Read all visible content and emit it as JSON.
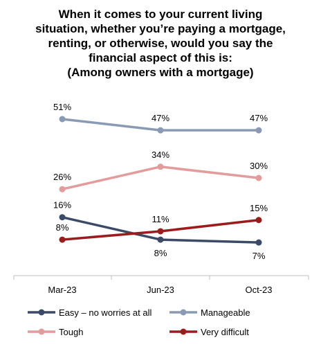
{
  "chart_data": {
    "type": "line",
    "title_lines": [
      "When it comes to your current living",
      "situation, whether you’re paying a mortgage,",
      "renting, or otherwise, would you say the",
      "financial aspect of this is:",
      "(Among owners with a mortgage)"
    ],
    "categories": [
      "Mar-23",
      "Jun-23",
      "Oct-23"
    ],
    "ylim": [
      0,
      60
    ],
    "legend_position": "bottom",
    "grid": false,
    "series": [
      {
        "name": "Easy – no worries at all",
        "values": [
          16,
          8,
          7
        ],
        "color": "#3b4a66",
        "labels": [
          "16%",
          "8%",
          "7%"
        ],
        "label_side": [
          "above",
          "below",
          "below"
        ]
      },
      {
        "name": "Manageable",
        "values": [
          51,
          47,
          47
        ],
        "color": "#8a9ab5",
        "labels": [
          "51%",
          "47%",
          "47%"
        ],
        "label_side": [
          "above",
          "above",
          "above"
        ]
      },
      {
        "name": "Tough",
        "values": [
          26,
          34,
          30
        ],
        "color": "#e29c9c",
        "labels": [
          "26%",
          "34%",
          "30%"
        ],
        "label_side": [
          "above",
          "above",
          "above"
        ]
      },
      {
        "name": "Very difficult",
        "values": [
          8,
          11,
          15
        ],
        "color": "#9b1c1c",
        "labels": [
          "8%",
          "11%",
          "15%"
        ],
        "label_side": [
          "above",
          "above",
          "above"
        ]
      }
    ]
  }
}
